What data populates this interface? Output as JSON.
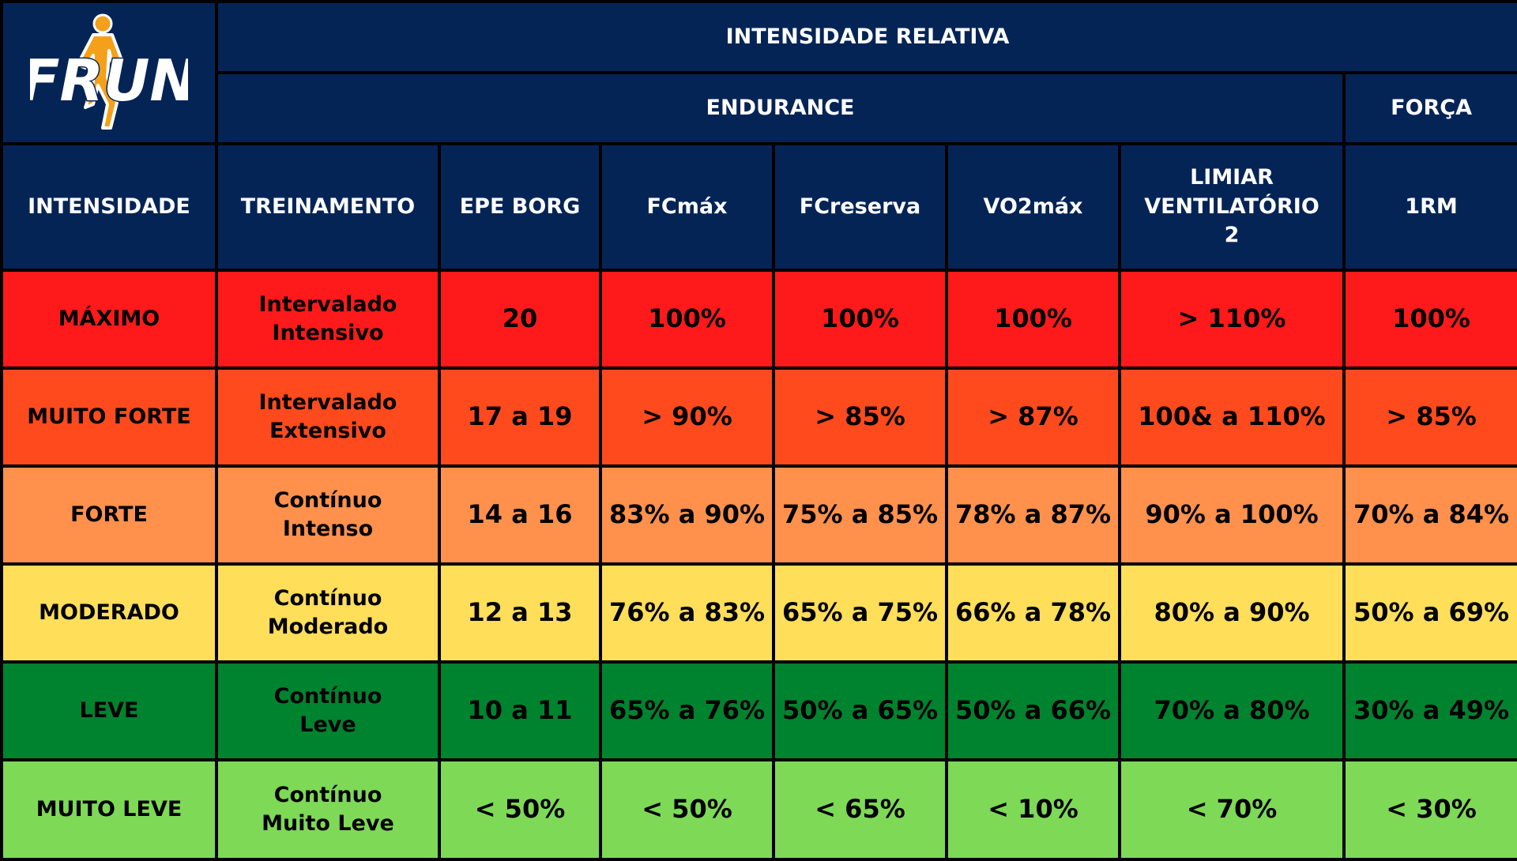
{
  "logo": {
    "text": "FRUN",
    "icon": "runner-icon",
    "colors": {
      "text": "#ffffff",
      "runner": "#f5a01a",
      "outline": "#052456"
    }
  },
  "header": {
    "top": "INTENSIDADE RELATIVA",
    "endurance": "ENDURANCE",
    "forca": "FORÇA"
  },
  "columns": [
    "INTENSIDADE",
    "TREINAMENTO",
    "EPE BORG",
    "FCmáx",
    "FCreserva",
    "VO2máx",
    "LIMIAR VENTILATÓRIO 2",
    "1RM"
  ],
  "column_lines": {
    "limiar": [
      "LIMIAR",
      "VENTILATÓRIO",
      "2"
    ]
  },
  "rows": [
    {
      "intensidade": "MÁXIMO",
      "treinamento": [
        "Intervalado",
        "Intensivo"
      ],
      "epe_borg": "20",
      "fcmax": "100%",
      "fcreserva": "100%",
      "vo2max": "100%",
      "limiar": "> 110%",
      "rm": "100%",
      "color": "#fe1a1a"
    },
    {
      "intensidade": "MUITO FORTE",
      "treinamento": [
        "Intervalado",
        "Extensivo"
      ],
      "epe_borg": "17 a 19",
      "fcmax": "> 90%",
      "fcreserva": "> 85%",
      "vo2max": "> 87%",
      "limiar": "100& a 110%",
      "rm": "> 85%",
      "color": "#ff4a1d"
    },
    {
      "intensidade": "FORTE",
      "treinamento": [
        "Contínuo",
        "Intenso"
      ],
      "epe_borg": "14 a 16",
      "fcmax": "83% a 90%",
      "fcreserva": "75% a 85%",
      "vo2max": "78% a 87%",
      "limiar": "90% a 100%",
      "rm": "70% a 84%",
      "color": "#ff914d"
    },
    {
      "intensidade": "MODERADO",
      "treinamento": [
        "Contínuo",
        "Moderado"
      ],
      "epe_borg": "12 a 13",
      "fcmax": "76% a 83%",
      "fcreserva": "65% a 75%",
      "vo2max": "66% a 78%",
      "limiar": "80% a 90%",
      "rm": "50% a 69%",
      "color": "#ffde5a"
    },
    {
      "intensidade": "LEVE",
      "treinamento": [
        "Contínuo",
        "Leve"
      ],
      "epe_borg": "10  a 11",
      "fcmax": "65% a 76%",
      "fcreserva": "50% a 65%",
      "vo2max": "50% a 66%",
      "limiar": "70% a 80%",
      "rm": "30% a 49%",
      "color": "#00832f"
    },
    {
      "intensidade": "MUITO LEVE",
      "treinamento": [
        "Contínuo",
        "Muito Leve"
      ],
      "epe_borg": "< 50%",
      "fcmax": "< 50%",
      "fcreserva": "< 65%",
      "vo2max": "< 10%",
      "limiar": "< 70%",
      "rm": "< 30%",
      "color": "#7ed957"
    }
  ],
  "colors": {
    "header_bg": "#052456",
    "border": "#000000"
  }
}
